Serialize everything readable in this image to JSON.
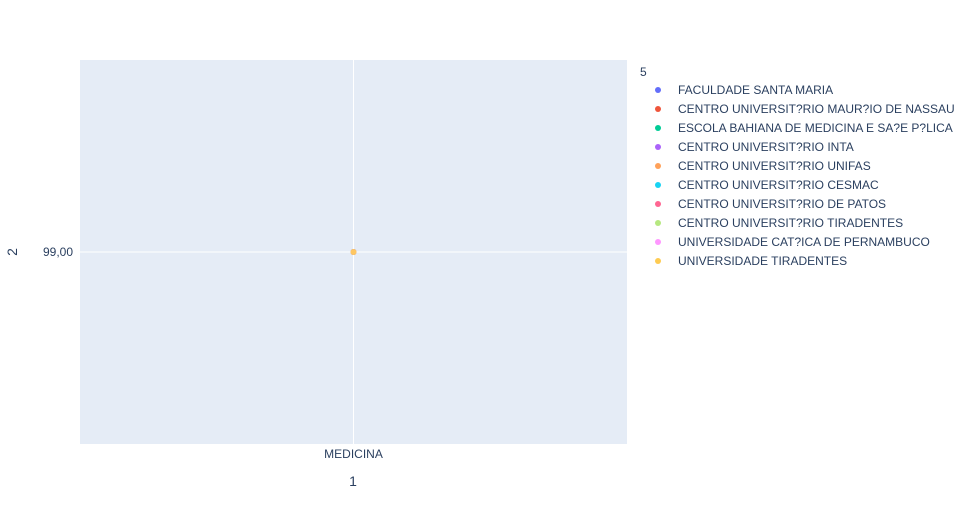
{
  "chart_data": {
    "type": "scatter",
    "xlabel": "1",
    "ylabel": "2",
    "categories": [
      "MEDICINA"
    ],
    "y_ticks": [
      "99,00"
    ],
    "legend_title": "5",
    "legend_placement": "right",
    "grid": true,
    "plot_bg": "#e5ecf6",
    "series": [
      {
        "name": "FACULDADE SANTA MARIA",
        "color": "#636efa",
        "points": [
          {
            "x": "MEDICINA",
            "y": 99
          }
        ]
      },
      {
        "name": "CENTRO UNIVERSIT?RIO MAUR?IO DE NASSAU",
        "color": "#ef553b",
        "points": [
          {
            "x": "MEDICINA",
            "y": 99
          }
        ]
      },
      {
        "name": "ESCOLA BAHIANA DE MEDICINA E SA?E P?LICA",
        "color": "#00cc96",
        "points": [
          {
            "x": "MEDICINA",
            "y": 99
          }
        ]
      },
      {
        "name": "CENTRO UNIVERSIT?RIO INTA",
        "color": "#ab63fa",
        "points": [
          {
            "x": "MEDICINA",
            "y": 99
          }
        ]
      },
      {
        "name": "CENTRO UNIVERSIT?RIO UNIFAS",
        "color": "#ffa15a",
        "points": [
          {
            "x": "MEDICINA",
            "y": 99
          }
        ]
      },
      {
        "name": "CENTRO UNIVERSIT?RIO CESMAC",
        "color": "#19d3f3",
        "points": [
          {
            "x": "MEDICINA",
            "y": 99
          }
        ]
      },
      {
        "name": "CENTRO UNIVERSIT?RIO DE PATOS",
        "color": "#ff6692",
        "points": [
          {
            "x": "MEDICINA",
            "y": 99
          }
        ]
      },
      {
        "name": "CENTRO UNIVERSIT?RIO TIRADENTES",
        "color": "#b6e880",
        "points": [
          {
            "x": "MEDICINA",
            "y": 99
          }
        ]
      },
      {
        "name": "UNIVERSIDADE CAT?ICA DE PERNAMBUCO",
        "color": "#ff97ff",
        "points": [
          {
            "x": "MEDICINA",
            "y": 99
          }
        ]
      },
      {
        "name": "UNIVERSIDADE TIRADENTES",
        "color": "#fecb52",
        "points": [
          {
            "x": "MEDICINA",
            "y": 99
          }
        ]
      }
    ]
  }
}
